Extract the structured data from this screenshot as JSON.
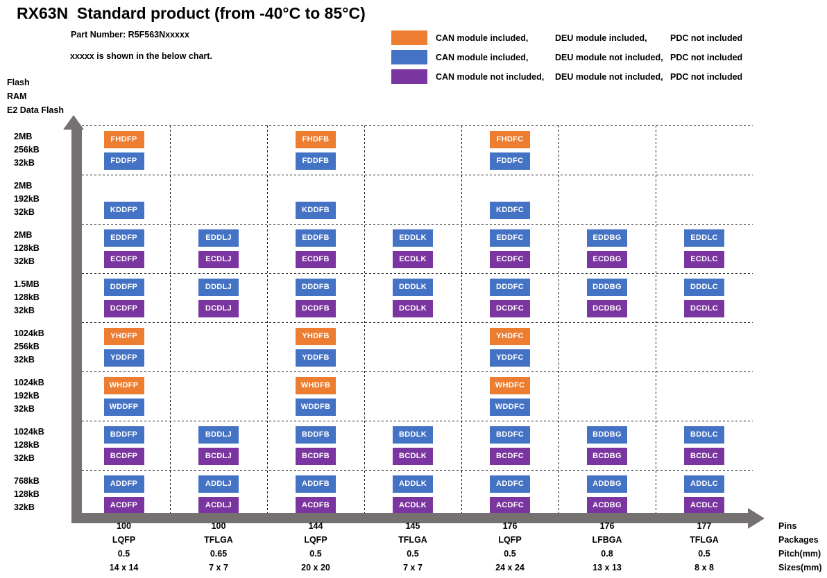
{
  "title": "RX63N  Standard product (from -40°C to 85°C)",
  "subtitle": {
    "part_number": "Part Number: R5F563Nxxxxx",
    "note": "xxxxx is shown in the below chart."
  },
  "colors": {
    "orange": "#ED7D31",
    "blue": "#4472C4",
    "purple": "#7B35A0",
    "axis_gray": "#757171"
  },
  "legend": [
    {
      "color": "orange",
      "can": "CAN module included,",
      "deu": "DEU module included,",
      "pdc": "PDC not included"
    },
    {
      "color": "blue",
      "can": "CAN module included,",
      "deu": "DEU module not included,",
      "pdc": "PDC not included"
    },
    {
      "color": "purple",
      "can": "CAN module not included,",
      "deu": "DEU module not included,",
      "pdc": "PDC not included"
    }
  ],
  "y_axis": {
    "labels": [
      "Flash",
      "RAM",
      "E2 Data Flash"
    ]
  },
  "x_axis": {
    "labels": [
      "Pins",
      "Packages",
      "Pitch(mm)",
      "Sizes(mm)"
    ]
  },
  "columns": [
    {
      "pins": "100",
      "package": "LQFP",
      "pitch": "0.5",
      "size": "14 x 14"
    },
    {
      "pins": "100",
      "package": "TFLGA",
      "pitch": "0.65",
      "size": "7 x 7"
    },
    {
      "pins": "144",
      "package": "LQFP",
      "pitch": "0.5",
      "size": "20 x 20"
    },
    {
      "pins": "145",
      "package": "TFLGA",
      "pitch": "0.5",
      "size": "7 x 7"
    },
    {
      "pins": "176",
      "package": "LQFP",
      "pitch": "0.5",
      "size": "24 x 24"
    },
    {
      "pins": "176",
      "package": "LFBGA",
      "pitch": "0.8",
      "size": "13 x 13"
    },
    {
      "pins": "177",
      "package": "TFLGA",
      "pitch": "0.5",
      "size": "8 x 8"
    }
  ],
  "rows": [
    {
      "flash": "2MB",
      "ram": "256kB",
      "e2": "32kB",
      "cells": [
        [
          {
            "label": "FHDFP",
            "color": "orange"
          },
          {
            "label": "FDDFP",
            "color": "blue"
          }
        ],
        [],
        [
          {
            "label": "FHDFB",
            "color": "orange"
          },
          {
            "label": "FDDFB",
            "color": "blue"
          }
        ],
        [],
        [
          {
            "label": "FHDFC",
            "color": "orange"
          },
          {
            "label": "FDDFC",
            "color": "blue"
          }
        ],
        [],
        []
      ]
    },
    {
      "flash": "2MB",
      "ram": "192kB",
      "e2": "32kB",
      "cells": [
        [
          null,
          {
            "label": "KDDFP",
            "color": "blue"
          }
        ],
        [],
        [
          null,
          {
            "label": "KDDFB",
            "color": "blue"
          }
        ],
        [],
        [
          null,
          {
            "label": "KDDFC",
            "color": "blue"
          }
        ],
        [],
        []
      ]
    },
    {
      "flash": "2MB",
      "ram": "128kB",
      "e2": "32kB",
      "cells": [
        [
          {
            "label": "EDDFP",
            "color": "blue"
          },
          {
            "label": "ECDFP",
            "color": "purple"
          }
        ],
        [
          {
            "label": "EDDLJ",
            "color": "blue"
          },
          {
            "label": "ECDLJ",
            "color": "purple"
          }
        ],
        [
          {
            "label": "EDDFB",
            "color": "blue"
          },
          {
            "label": "ECDFB",
            "color": "purple"
          }
        ],
        [
          {
            "label": "EDDLK",
            "color": "blue"
          },
          {
            "label": "ECDLK",
            "color": "purple"
          }
        ],
        [
          {
            "label": "EDDFC",
            "color": "blue"
          },
          {
            "label": "ECDFC",
            "color": "purple"
          }
        ],
        [
          {
            "label": "EDDBG",
            "color": "blue"
          },
          {
            "label": "ECDBG",
            "color": "purple"
          }
        ],
        [
          {
            "label": "EDDLC",
            "color": "blue"
          },
          {
            "label": "ECDLC",
            "color": "purple"
          }
        ]
      ]
    },
    {
      "flash": "1.5MB",
      "ram": "128kB",
      "e2": "32kB",
      "cells": [
        [
          {
            "label": "DDDFP",
            "color": "blue"
          },
          {
            "label": "DCDFP",
            "color": "purple"
          }
        ],
        [
          {
            "label": "DDDLJ",
            "color": "blue"
          },
          {
            "label": "DCDLJ",
            "color": "purple"
          }
        ],
        [
          {
            "label": "DDDFB",
            "color": "blue"
          },
          {
            "label": "DCDFB",
            "color": "purple"
          }
        ],
        [
          {
            "label": "DDDLK",
            "color": "blue"
          },
          {
            "label": "DCDLK",
            "color": "purple"
          }
        ],
        [
          {
            "label": "DDDFC",
            "color": "blue"
          },
          {
            "label": "DCDFC",
            "color": "purple"
          }
        ],
        [
          {
            "label": "DDDBG",
            "color": "blue"
          },
          {
            "label": "DCDBG",
            "color": "purple"
          }
        ],
        [
          {
            "label": "DDDLC",
            "color": "blue"
          },
          {
            "label": "DCDLC",
            "color": "purple"
          }
        ]
      ]
    },
    {
      "flash": "1024kB",
      "ram": "256kB",
      "e2": "32kB",
      "cells": [
        [
          {
            "label": "YHDFP",
            "color": "orange"
          },
          {
            "label": "YDDFP",
            "color": "blue"
          }
        ],
        [],
        [
          {
            "label": "YHDFB",
            "color": "orange"
          },
          {
            "label": "YDDFB",
            "color": "blue"
          }
        ],
        [],
        [
          {
            "label": "YHDFC",
            "color": "orange"
          },
          {
            "label": "YDDFC",
            "color": "blue"
          }
        ],
        [],
        []
      ]
    },
    {
      "flash": "1024kB",
      "ram": "192kB",
      "e2": "32kB",
      "cells": [
        [
          {
            "label": "WHDFP",
            "color": "orange"
          },
          {
            "label": "WDDFP",
            "color": "blue"
          }
        ],
        [],
        [
          {
            "label": "WHDFB",
            "color": "orange"
          },
          {
            "label": "WDDFB",
            "color": "blue"
          }
        ],
        [],
        [
          {
            "label": "WHDFC",
            "color": "orange"
          },
          {
            "label": "WDDFC",
            "color": "blue"
          }
        ],
        [],
        []
      ]
    },
    {
      "flash": "1024kB",
      "ram": "128kB",
      "e2": "32kB",
      "cells": [
        [
          {
            "label": "BDDFP",
            "color": "blue"
          },
          {
            "label": "BCDFP",
            "color": "purple"
          }
        ],
        [
          {
            "label": "BDDLJ",
            "color": "blue"
          },
          {
            "label": "BCDLJ",
            "color": "purple"
          }
        ],
        [
          {
            "label": "BDDFB",
            "color": "blue"
          },
          {
            "label": "BCDFB",
            "color": "purple"
          }
        ],
        [
          {
            "label": "BDDLK",
            "color": "blue"
          },
          {
            "label": "BCDLK",
            "color": "purple"
          }
        ],
        [
          {
            "label": "BDDFC",
            "color": "blue"
          },
          {
            "label": "BCDFC",
            "color": "purple"
          }
        ],
        [
          {
            "label": "BDDBG",
            "color": "blue"
          },
          {
            "label": "BCDBG",
            "color": "purple"
          }
        ],
        [
          {
            "label": "BDDLC",
            "color": "blue"
          },
          {
            "label": "BCDLC",
            "color": "purple"
          }
        ]
      ]
    },
    {
      "flash": "768kB",
      "ram": "128kB",
      "e2": "32kB",
      "cells": [
        [
          {
            "label": "ADDFP",
            "color": "blue"
          },
          {
            "label": "ACDFP",
            "color": "purple"
          }
        ],
        [
          {
            "label": "ADDLJ",
            "color": "blue"
          },
          {
            "label": "ACDLJ",
            "color": "purple"
          }
        ],
        [
          {
            "label": "ADDFB",
            "color": "blue"
          },
          {
            "label": "ACDFB",
            "color": "purple"
          }
        ],
        [
          {
            "label": "ADDLK",
            "color": "blue"
          },
          {
            "label": "ACDLK",
            "color": "purple"
          }
        ],
        [
          {
            "label": "ADDFC",
            "color": "blue"
          },
          {
            "label": "ACDFC",
            "color": "purple"
          }
        ],
        [
          {
            "label": "ADDBG",
            "color": "blue"
          },
          {
            "label": "ACDBG",
            "color": "purple"
          }
        ],
        [
          {
            "label": "ADDLC",
            "color": "blue"
          },
          {
            "label": "ACDLC",
            "color": "purple"
          }
        ]
      ]
    }
  ]
}
